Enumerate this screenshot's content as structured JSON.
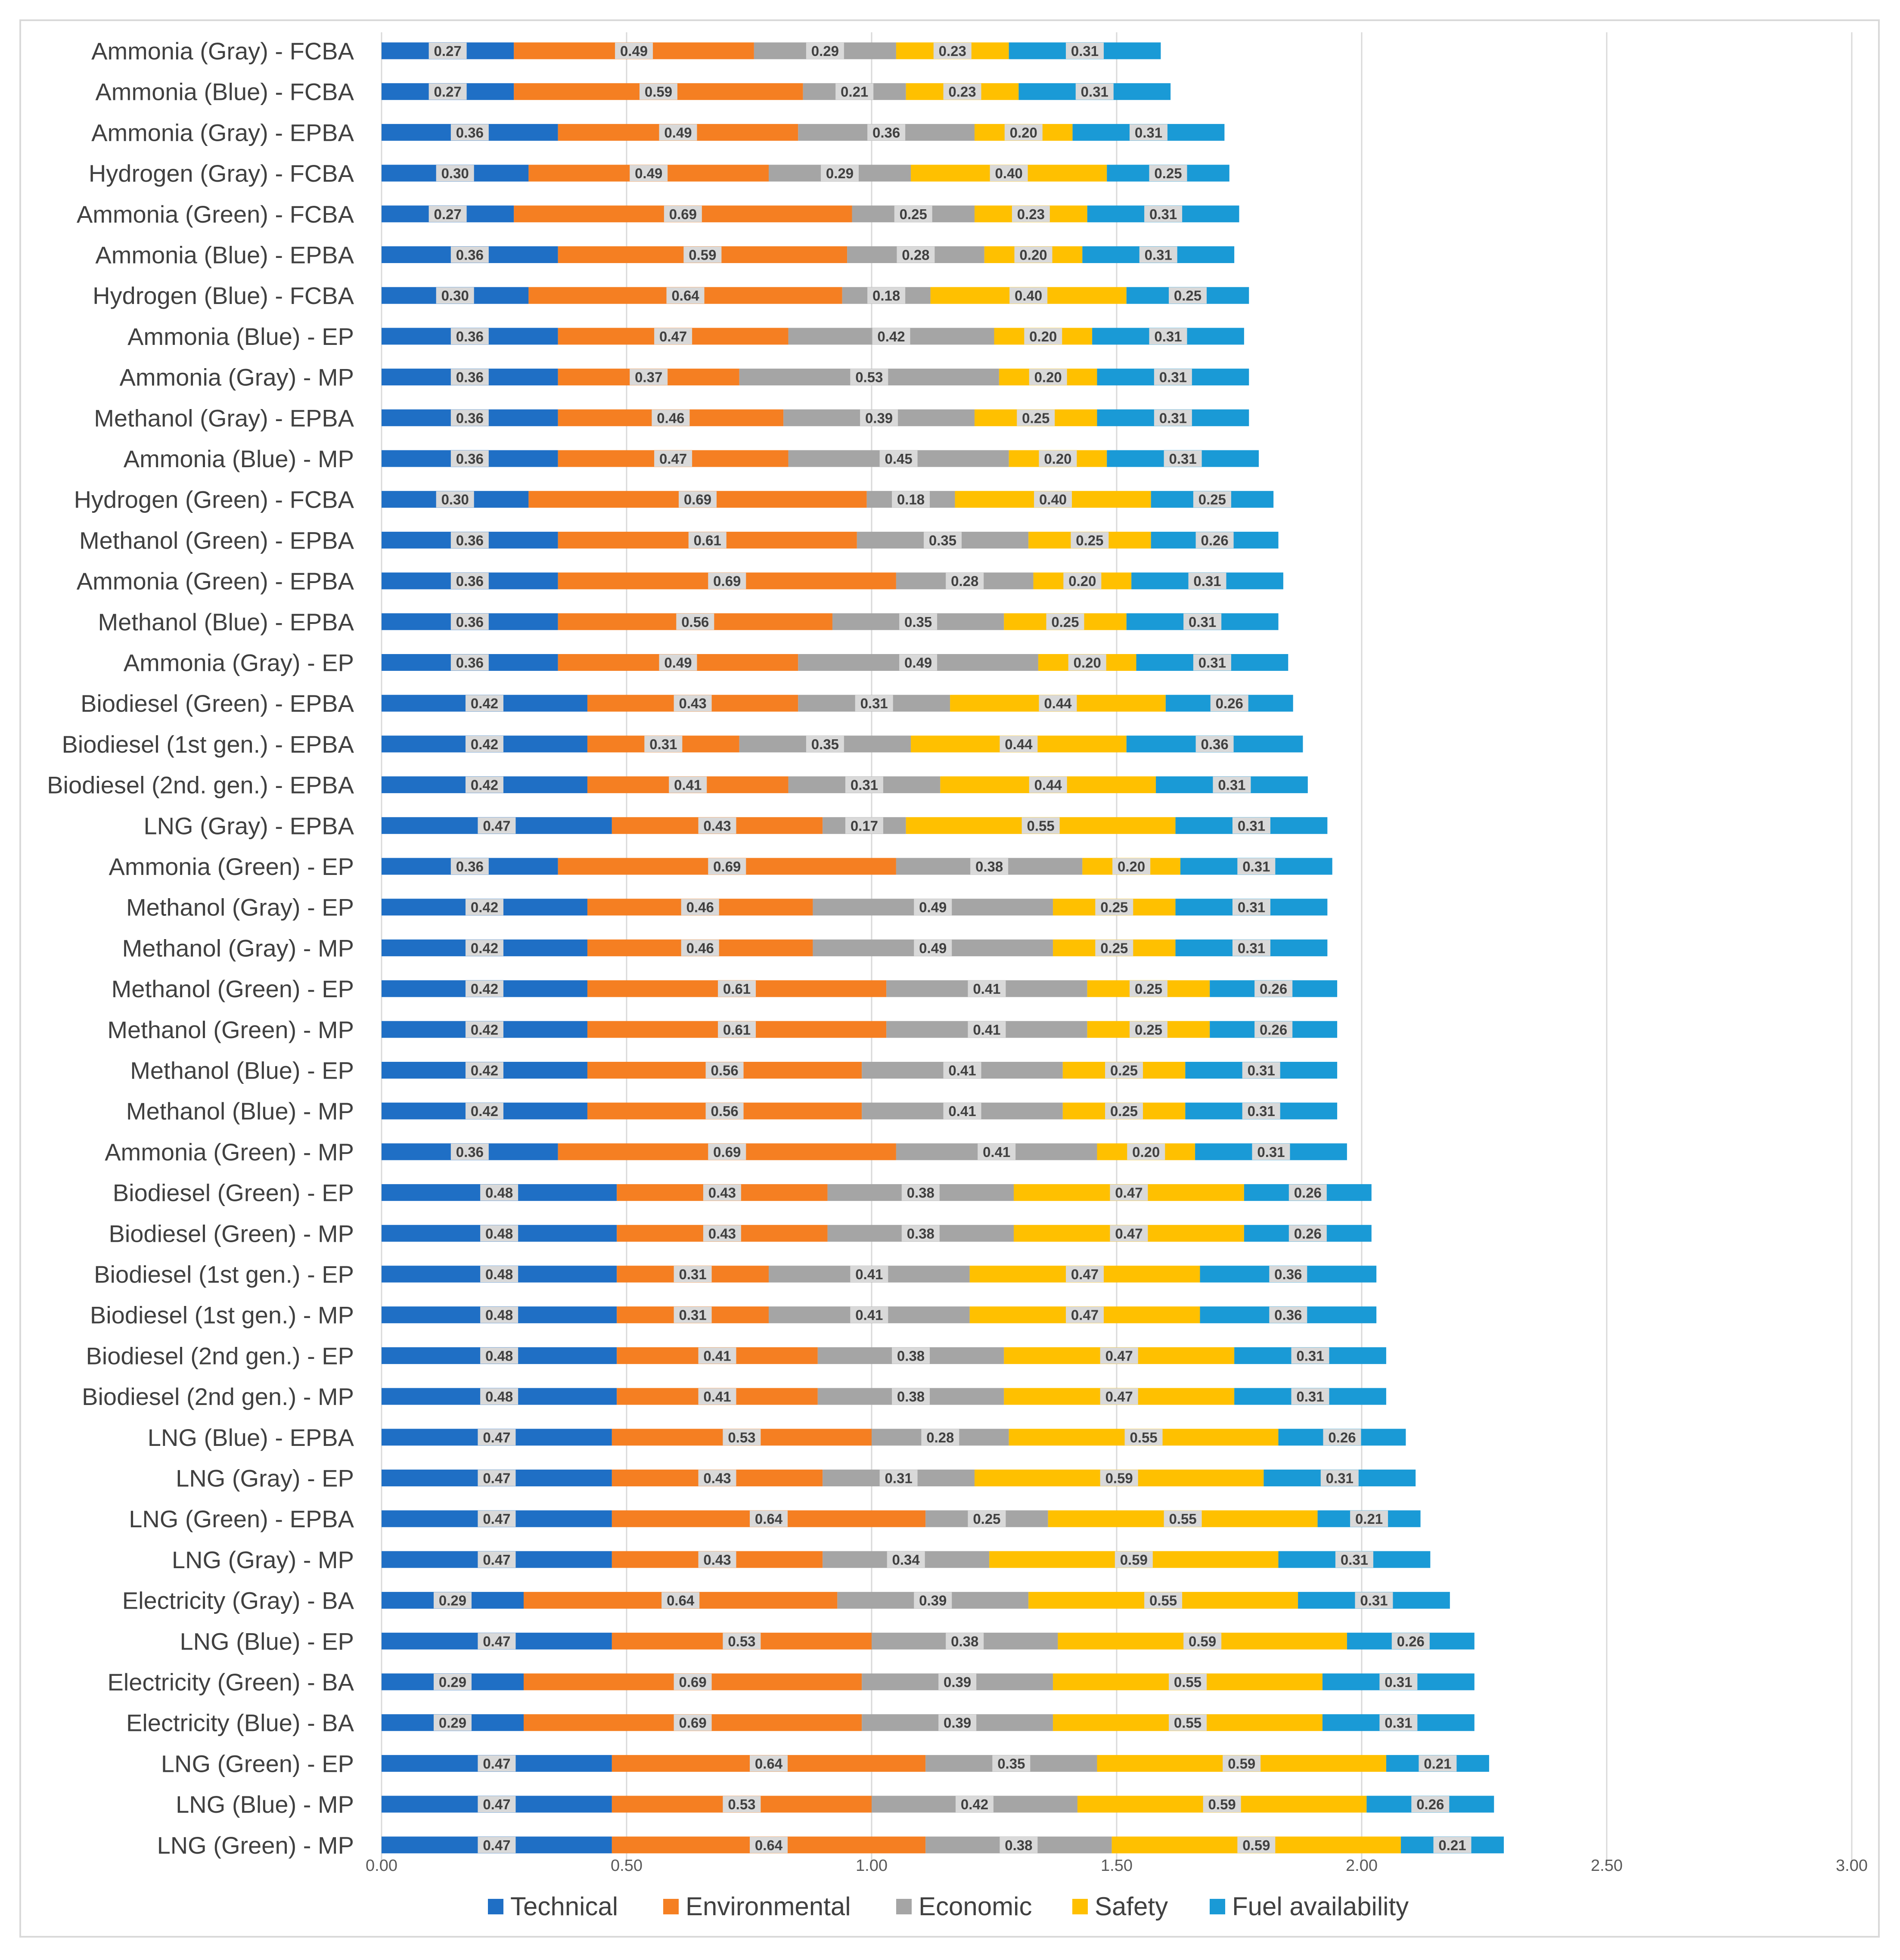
{
  "chart_data": {
    "type": "bar",
    "orientation": "horizontal",
    "stacked": true,
    "title": "",
    "xlabel": "",
    "ylabel": "",
    "xlim": [
      0,
      3
    ],
    "xticks": [
      "0.00",
      "0.50",
      "1.00",
      "1.50",
      "2.00",
      "2.50",
      "3.00"
    ],
    "grid": "vertical",
    "legend_position": "bottom",
    "categories": [
      "Ammonia (Gray) - FCBA",
      "Ammonia (Blue) - FCBA",
      "Ammonia (Gray) - EPBA",
      "Hydrogen (Gray) - FCBA",
      "Ammonia (Green) - FCBA",
      "Ammonia (Blue) - EPBA",
      "Hydrogen (Blue) - FCBA",
      "Ammonia (Blue) - EP",
      "Ammonia (Gray) - MP",
      "Methanol (Gray) - EPBA",
      "Ammonia (Blue) - MP",
      "Hydrogen (Green) - FCBA",
      "Methanol (Green) - EPBA",
      "Ammonia  (Green) - EPBA",
      "Methanol (Blue) - EPBA",
      "Ammonia (Gray) - EP",
      "Biodiesel  (Green) - EPBA",
      "Biodiesel (1st gen.) - EPBA",
      "Biodiesel (2nd. gen.) - EPBA",
      "LNG (Gray) - EPBA",
      "Ammonia (Green) - EP",
      "Methanol (Gray) - EP",
      "Methanol (Gray) - MP",
      "Methanol (Green) - EP",
      "Methanol (Green) - MP",
      "Methanol (Blue) - EP",
      "Methanol (Blue) - MP",
      "Ammonia (Green) - MP",
      "Biodiesel  (Green) - EP",
      "Biodiesel  (Green) - MP",
      "Biodiesel (1st gen.) - EP",
      "Biodiesel (1st gen.) - MP",
      "Biodiesel (2nd gen.) - EP",
      "Biodiesel (2nd gen.) - MP",
      "LNG (Blue) - EPBA",
      "LNG (Gray) - EP",
      "LNG  (Green) - EPBA",
      "LNG (Gray) - MP",
      "Electricity (Gray) - BA",
      "LNG (Blue) - EP",
      "Electricity (Green) - BA",
      "Electricity (Blue) - BA",
      "LNG  (Green) - EP",
      "LNG (Blue) - MP",
      "LNG (Green) - MP"
    ],
    "series": [
      {
        "name": "Technical",
        "color": "#1f6fc5",
        "values": [
          0.27,
          0.27,
          0.36,
          0.3,
          0.27,
          0.36,
          0.3,
          0.36,
          0.36,
          0.36,
          0.36,
          0.3,
          0.36,
          0.36,
          0.36,
          0.36,
          0.42,
          0.42,
          0.42,
          0.47,
          0.36,
          0.42,
          0.42,
          0.42,
          0.42,
          0.42,
          0.42,
          0.36,
          0.48,
          0.48,
          0.48,
          0.48,
          0.48,
          0.48,
          0.47,
          0.47,
          0.47,
          0.47,
          0.29,
          0.47,
          0.29,
          0.29,
          0.47,
          0.47,
          0.47
        ]
      },
      {
        "name": "Environmental",
        "color": "#f57f22",
        "values": [
          0.49,
          0.59,
          0.49,
          0.49,
          0.69,
          0.59,
          0.64,
          0.47,
          0.37,
          0.46,
          0.47,
          0.69,
          0.61,
          0.69,
          0.56,
          0.49,
          0.43,
          0.31,
          0.41,
          0.43,
          0.69,
          0.46,
          0.46,
          0.61,
          0.61,
          0.56,
          0.56,
          0.69,
          0.43,
          0.43,
          0.31,
          0.31,
          0.41,
          0.41,
          0.53,
          0.43,
          0.64,
          0.43,
          0.64,
          0.53,
          0.69,
          0.69,
          0.64,
          0.53,
          0.64
        ]
      },
      {
        "name": "Economic",
        "color": "#a5a5a5",
        "values": [
          0.29,
          0.21,
          0.36,
          0.29,
          0.25,
          0.28,
          0.18,
          0.42,
          0.53,
          0.39,
          0.45,
          0.18,
          0.35,
          0.28,
          0.35,
          0.49,
          0.31,
          0.35,
          0.31,
          0.17,
          0.38,
          0.49,
          0.49,
          0.41,
          0.41,
          0.41,
          0.41,
          0.41,
          0.38,
          0.38,
          0.41,
          0.41,
          0.38,
          0.38,
          0.28,
          0.31,
          0.25,
          0.34,
          0.39,
          0.38,
          0.39,
          0.39,
          0.35,
          0.42,
          0.38
        ]
      },
      {
        "name": "Safety",
        "color": "#ffc000",
        "values": [
          0.23,
          0.23,
          0.2,
          0.4,
          0.23,
          0.2,
          0.4,
          0.2,
          0.2,
          0.25,
          0.2,
          0.4,
          0.25,
          0.2,
          0.25,
          0.2,
          0.44,
          0.44,
          0.44,
          0.55,
          0.2,
          0.25,
          0.25,
          0.25,
          0.25,
          0.25,
          0.25,
          0.2,
          0.47,
          0.47,
          0.47,
          0.47,
          0.47,
          0.47,
          0.55,
          0.59,
          0.55,
          0.59,
          0.55,
          0.59,
          0.55,
          0.55,
          0.59,
          0.59,
          0.59
        ]
      },
      {
        "name": "Fuel availability",
        "color": "#1a9ad6",
        "values": [
          0.31,
          0.31,
          0.31,
          0.25,
          0.31,
          0.31,
          0.25,
          0.31,
          0.31,
          0.31,
          0.31,
          0.25,
          0.26,
          0.31,
          0.31,
          0.31,
          0.26,
          0.36,
          0.31,
          0.31,
          0.31,
          0.31,
          0.31,
          0.26,
          0.26,
          0.31,
          0.31,
          0.31,
          0.26,
          0.26,
          0.36,
          0.36,
          0.31,
          0.31,
          0.26,
          0.31,
          0.21,
          0.31,
          0.31,
          0.26,
          0.31,
          0.31,
          0.21,
          0.26,
          0.21
        ]
      }
    ]
  }
}
